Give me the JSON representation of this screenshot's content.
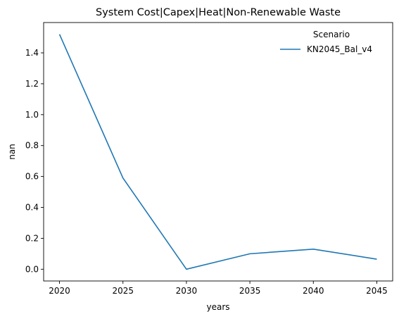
{
  "chart_data": {
    "type": "line",
    "title": "System Cost|Capex|Heat|Non-Renewable Waste",
    "xlabel": "years",
    "ylabel": "nan",
    "x": [
      2020,
      2025,
      2030,
      2035,
      2040,
      2045
    ],
    "x_ticks": [
      "2020",
      "2025",
      "2030",
      "2035",
      "2040",
      "2045"
    ],
    "y_ticks": [
      "0.0",
      "0.2",
      "0.4",
      "0.6",
      "0.8",
      "1.0",
      "1.2",
      "1.4"
    ],
    "xlim": [
      2018.75,
      2046.25
    ],
    "ylim": [
      -0.076,
      1.596
    ],
    "grid": false,
    "legend": {
      "title": "Scenario",
      "placement": "top-right"
    },
    "series": [
      {
        "name": "KN2045_Bal_v4",
        "color": "#1f77b4",
        "values": [
          1.52,
          0.59,
          0.0,
          0.1,
          0.13,
          0.065
        ]
      }
    ]
  }
}
